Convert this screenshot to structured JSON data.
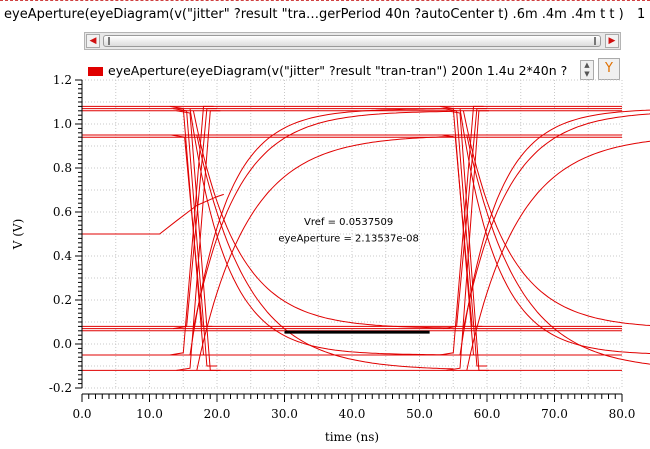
{
  "window": {
    "expression": "eyeAperture(eyeDiagram(v(\"jitter\" ?result \"tra…gerPeriod 40n ?autoCenter t) .6m .4m .4m t t )",
    "page_number": "1"
  },
  "scrollbar": {
    "left_arrow": "◀",
    "right_arrow": "▶"
  },
  "legend": {
    "label": "eyeAperture(eyeDiagram(v(\"jitter\" ?result \"tran-tran\") 200n 1.4u 2*40n ?",
    "color": "#e00000",
    "spin_glyph": "▲\n▼",
    "filter_glyph": "Y"
  },
  "chart_data": {
    "type": "line",
    "xlabel": "time (ns)",
    "ylabel": "V (V)",
    "xlim": [
      0,
      80
    ],
    "ylim": [
      -0.2,
      1.2
    ],
    "x_ticks": [
      "0.0",
      "10.0",
      "20.0",
      "30.0",
      "40.0",
      "50.0",
      "60.0",
      "70.0",
      "80.0"
    ],
    "y_ticks": [
      "-0.2",
      "0.0",
      "0.2",
      "0.4",
      "0.6",
      "0.8",
      "1.0",
      "1.2"
    ],
    "grid": true,
    "series_color": "#e00000",
    "flat_levels": [
      1.08,
      1.07,
      1.06,
      0.95,
      0.94,
      0.08,
      0.07,
      0.06,
      -0.05,
      -0.12
    ],
    "falling_edges": [
      {
        "t0": 15.0,
        "t1": 18.0,
        "v0": 1.08,
        "v1": -0.05
      },
      {
        "t0": 15.5,
        "t1": 18.5,
        "v0": 1.07,
        "v1": -0.1
      },
      {
        "t0": 16.0,
        "t1": 19.0,
        "v0": 1.06,
        "v1": -0.12
      },
      {
        "t0": 15.2,
        "t1": 17.8,
        "v0": 0.95,
        "v1": 0.08
      },
      {
        "t0": 55.0,
        "t1": 58.0,
        "v0": 1.08,
        "v1": -0.05
      },
      {
        "t0": 55.5,
        "t1": 58.5,
        "v0": 1.07,
        "v1": -0.1
      },
      {
        "t0": 56.0,
        "t1": 58.8,
        "v0": 1.06,
        "v1": -0.12
      },
      {
        "t0": 55.3,
        "t1": 57.8,
        "v0": 0.95,
        "v1": 0.08
      }
    ],
    "rising_edges": [
      {
        "t0": 15.0,
        "t1": 18.0,
        "v0": -0.05,
        "v1": 1.08
      },
      {
        "t0": 15.5,
        "t1": 18.5,
        "v0": 0.07,
        "v1": 1.07
      },
      {
        "t0": 16.0,
        "t1": 19.0,
        "v0": -0.12,
        "v1": 1.06
      },
      {
        "t0": 55.0,
        "t1": 58.0,
        "v0": -0.05,
        "v1": 1.08
      },
      {
        "t0": 55.5,
        "t1": 58.5,
        "v0": 0.07,
        "v1": 1.07
      },
      {
        "t0": 56.0,
        "t1": 58.8,
        "v0": -0.12,
        "v1": 1.06
      }
    ],
    "slow_rise": [
      {
        "t_start": 16.0,
        "v_start": -0.05,
        "v_end": 1.07,
        "tau": 5.5
      },
      {
        "t_start": 16.5,
        "v_start": 0.07,
        "v_end": 1.06,
        "tau": 6.5
      },
      {
        "t_start": 17.0,
        "v_start": -0.12,
        "v_end": 0.95,
        "tau": 7.5
      },
      {
        "t_start": 56.0,
        "v_start": -0.05,
        "v_end": 1.07,
        "tau": 5.5
      },
      {
        "t_start": 56.5,
        "v_start": 0.07,
        "v_end": 1.06,
        "tau": 6.5
      },
      {
        "t_start": 57.0,
        "v_start": -0.12,
        "v_end": 0.95,
        "tau": 7.5
      }
    ],
    "slow_fall": [
      {
        "t_start": 16.0,
        "v_start": 1.07,
        "v_end": -0.05,
        "tau": 5.5
      },
      {
        "t_start": 16.5,
        "v_start": 1.06,
        "v_end": 0.07,
        "tau": 6.5
      },
      {
        "t_start": 17.0,
        "v_start": 0.95,
        "v_end": -0.12,
        "tau": 7.5
      },
      {
        "t_start": 56.0,
        "v_start": 1.07,
        "v_end": -0.05,
        "tau": 5.5
      },
      {
        "t_start": 56.5,
        "v_start": 1.06,
        "v_end": 0.07,
        "tau": 6.5
      },
      {
        "t_start": 57.0,
        "v_start": 0.95,
        "v_end": -0.12,
        "tau": 7.5
      }
    ],
    "initial_trace": {
      "x": [
        0,
        11.5,
        14,
        17,
        20,
        21
      ],
      "y": [
        0.5,
        0.5,
        0.56,
        0.63,
        0.67,
        0.68
      ]
    },
    "aperture_line": {
      "x0": 30.0,
      "x1": 51.5,
      "y": 0.0537509,
      "color": "#000000"
    },
    "annotations": [
      {
        "text": "Vref = 0.0537509",
        "x": 39.5,
        "y": 0.54
      },
      {
        "text": "eyeAperture = 2.13537e-08",
        "x": 39.5,
        "y": 0.465
      }
    ]
  }
}
